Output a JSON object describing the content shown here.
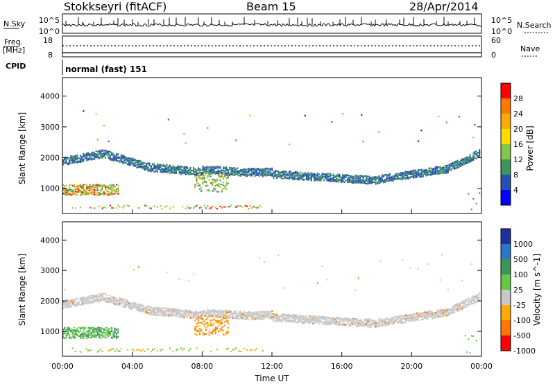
{
  "header": {
    "station": "Stokkseyri (fitACF)",
    "beam": "Beam 15",
    "date": "28/Apr/2014"
  },
  "strips": {
    "nsky_label": "N.Sky",
    "nsky_ticks": [
      "10^5",
      "10^0"
    ],
    "nsearch_label": "N.Search",
    "freq_label_1": "Freq.",
    "freq_label_2": "[MHz]",
    "freq_ticks": [
      "18",
      "8"
    ],
    "nave_label": "Nave",
    "nave_ticks": [
      "60",
      "0"
    ],
    "cpid_label": "CPID",
    "cpid_value": "normal (fast) 151"
  },
  "chart_data": [
    {
      "type": "heatmap",
      "name": "power-panel",
      "ylabel": "Slant Range [km]",
      "y_ticks": [
        "4000",
        "3000",
        "2000",
        "1000"
      ],
      "y_tick_values": [
        4000,
        3000,
        2000,
        1000
      ],
      "ylim": [
        180,
        4600
      ],
      "xlim_hours": [
        0,
        24
      ],
      "colorbar_label": "Power [dB]",
      "colorbar_ticks": [
        "28",
        "24",
        "20",
        "16",
        "12",
        "8",
        "4"
      ],
      "colorbar_colors": [
        "#ff0000",
        "#ff7800",
        "#ffaa00",
        "#ffdc00",
        "#82c846",
        "#3c965a",
        "#2850b4",
        "#0000ff"
      ]
    },
    {
      "type": "heatmap",
      "name": "velocity-panel",
      "ylabel": "Slant Range [km]",
      "y_ticks": [
        "4000",
        "3000",
        "2000",
        "1000"
      ],
      "y_tick_values": [
        4000,
        3000,
        2000,
        1000
      ],
      "ylim": [
        180,
        4600
      ],
      "xlim_hours": [
        0,
        24
      ],
      "colorbar_label": "Velocity [m s^-1]",
      "colorbar_ticks": [
        "1000",
        "500",
        "100",
        "25",
        "-25",
        "-100",
        "-500",
        "-1000"
      ],
      "colorbar_colors": [
        "#2030a0",
        "#2878c8",
        "#3c965a",
        "#64c846",
        "#c8c8c8",
        "#ffaa00",
        "#ff7800",
        "#ff0000"
      ],
      "x_ticks": [
        "00:00",
        "04:00",
        "08:00",
        "12:00",
        "16:00",
        "20:00",
        "00:00"
      ],
      "x_tick_hours": [
        0,
        4,
        8,
        12,
        16,
        20,
        24
      ],
      "xlabel": "Time UT"
    }
  ]
}
